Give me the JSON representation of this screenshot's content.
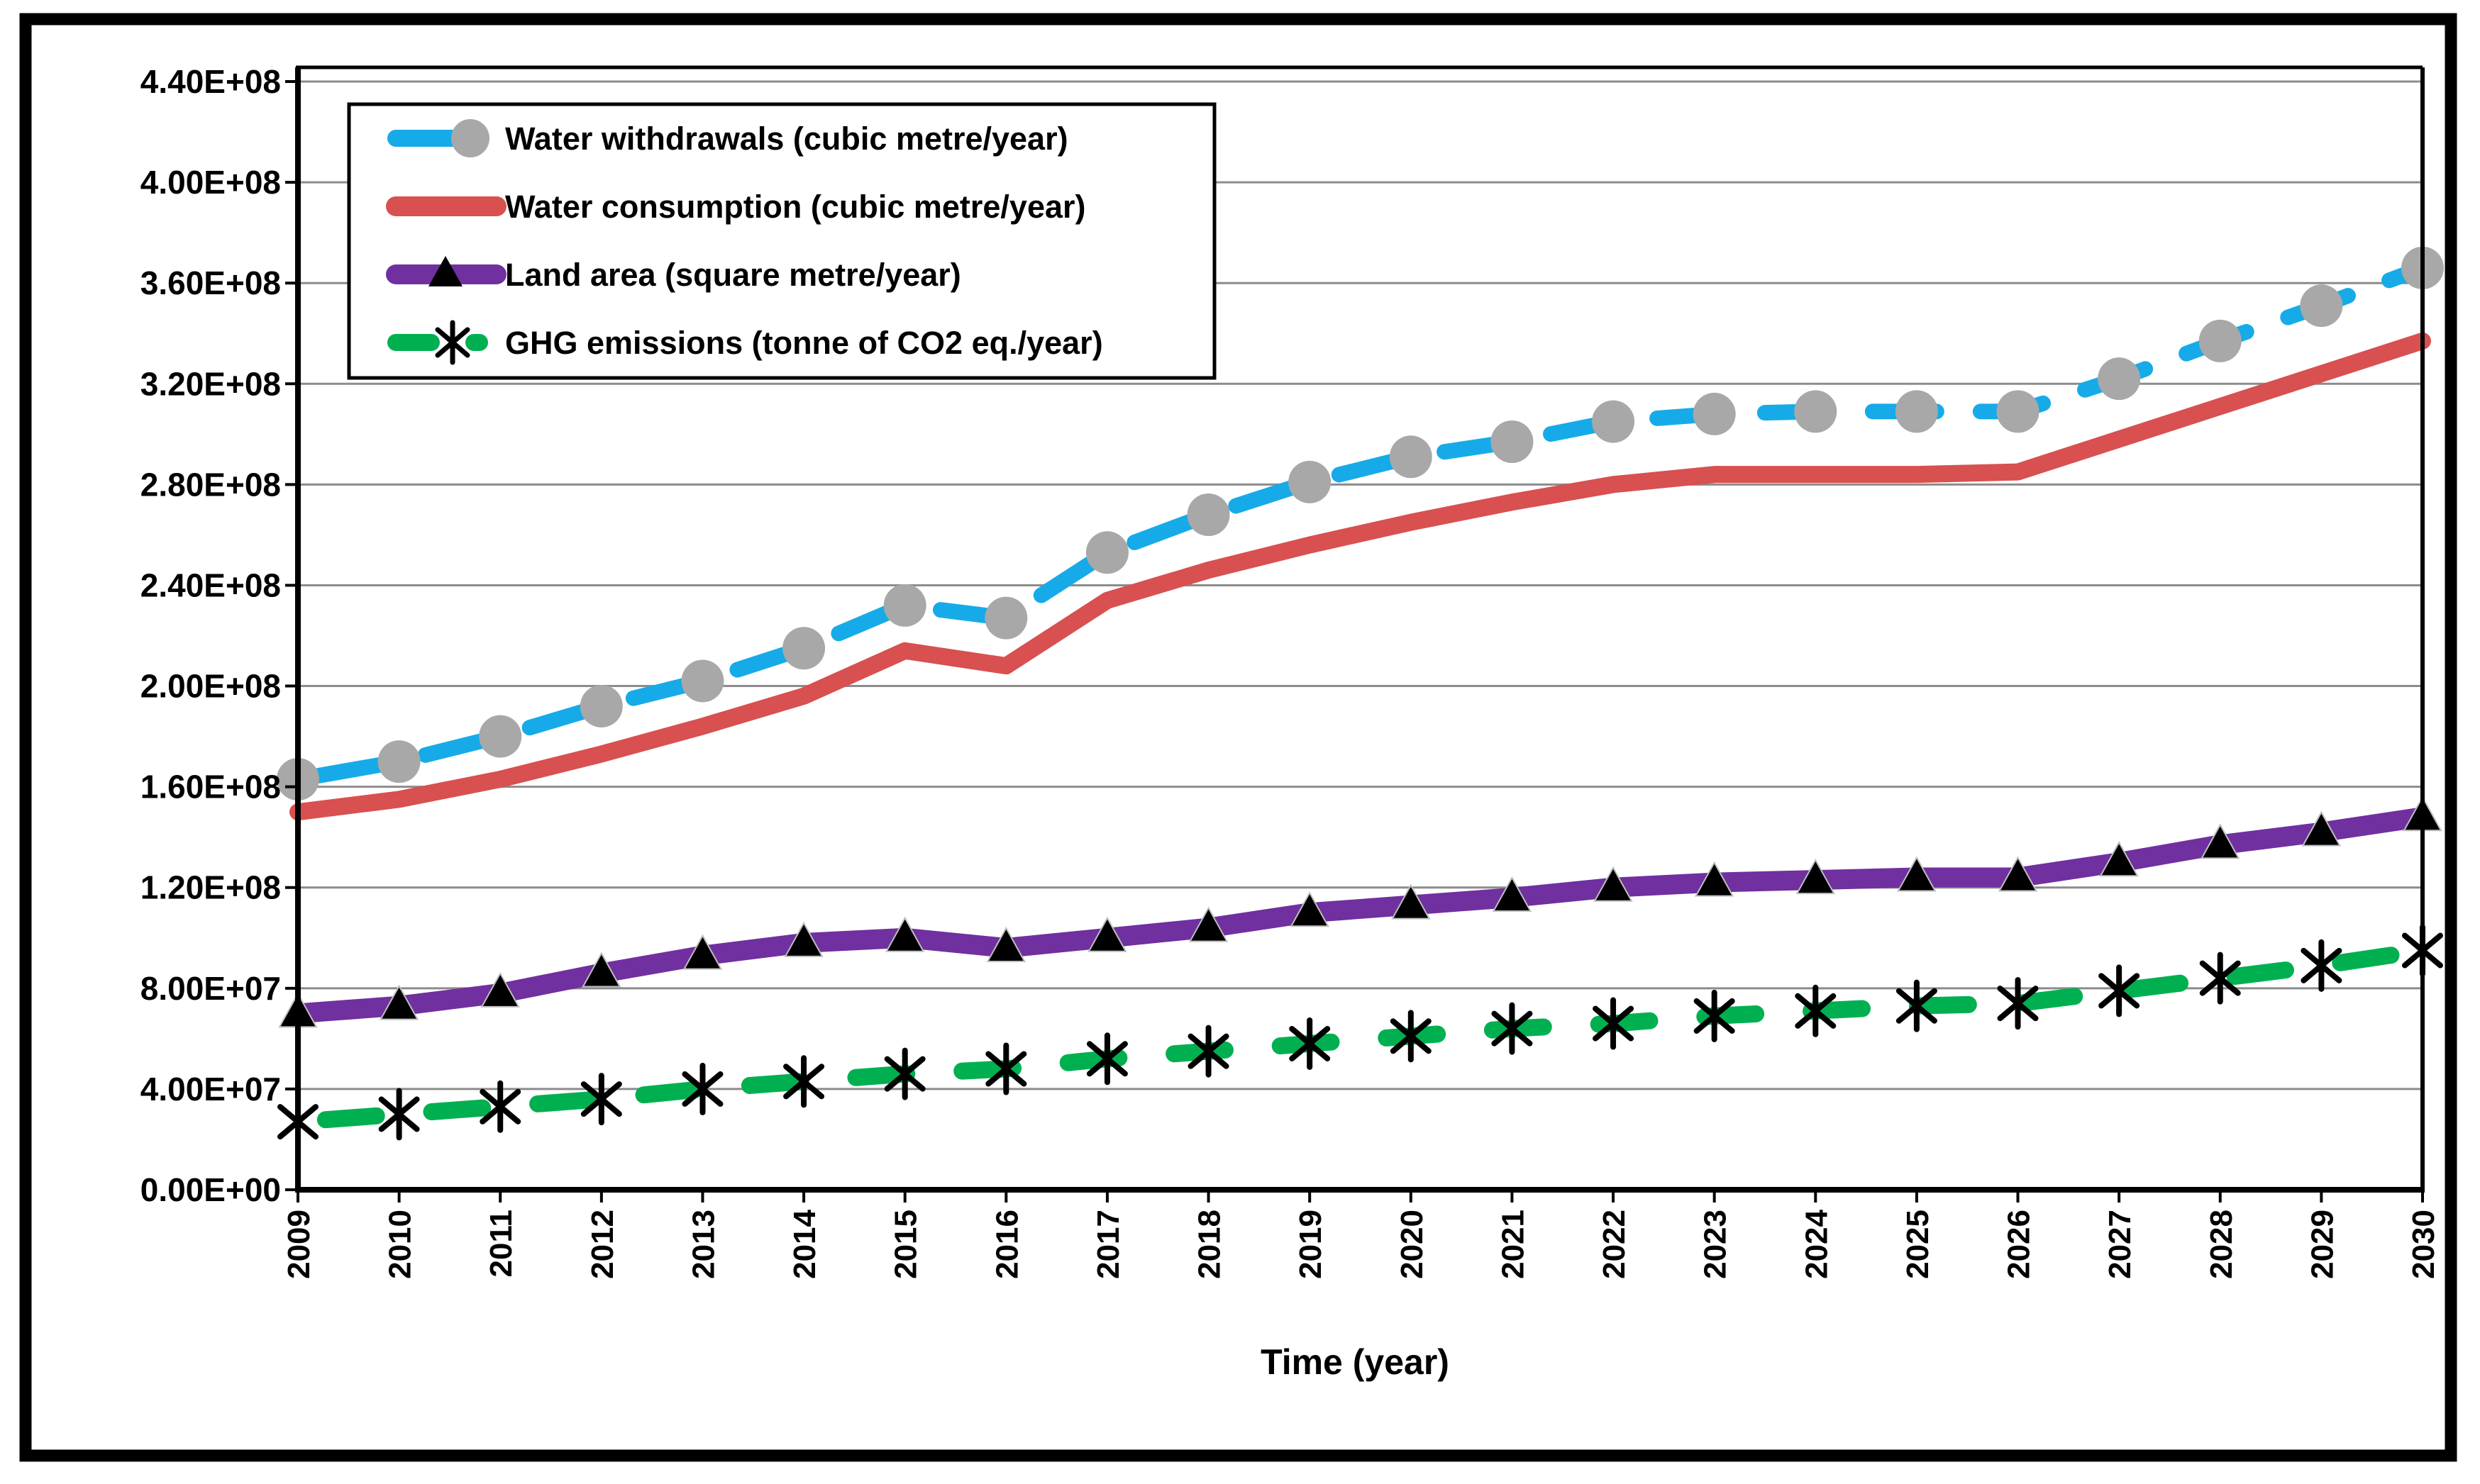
{
  "figure": {
    "background": "#ffffff",
    "frame_color": "#000000",
    "gridline_color": "#8c8c8c"
  },
  "chart_data": {
    "type": "line",
    "title": "",
    "xlabel": "Time (year)",
    "ylabel": "",
    "x": [
      2009,
      2010,
      2011,
      2012,
      2013,
      2014,
      2015,
      2016,
      2017,
      2018,
      2019,
      2020,
      2021,
      2022,
      2023,
      2024,
      2025,
      2026,
      2027,
      2028,
      2029,
      2030
    ],
    "x_tick_labels": [
      "2009",
      "2010",
      "2011",
      "2012",
      "2013",
      "2014",
      "2015",
      "2016",
      "2017",
      "2018",
      "2019",
      "2020",
      "2021",
      "2022",
      "2023",
      "2024",
      "2025",
      "2026",
      "2027",
      "2028",
      "2029",
      "2030"
    ],
    "y_tick_labels": [
      "0.00E+00",
      "4.00E+07",
      "8.00E+07",
      "1.20E+08",
      "1.60E+08",
      "2.00E+08",
      "2.40E+08",
      "2.80E+08",
      "3.20E+08",
      "3.60E+08",
      "4.00E+08",
      "4.40E+08"
    ],
    "ylim": [
      0,
      440000000
    ],
    "y_tick_step": 40000000,
    "grid": true,
    "legend_position": "top-left",
    "series": [
      {
        "name": "Water withdrawals (cubic metre/year)",
        "color": "#16ABE8",
        "marker": "circle",
        "marker_color": "#A8A8A8",
        "style": "dashed",
        "values": [
          163000000,
          170000000,
          180000000,
          192000000,
          202000000,
          215000000,
          232000000,
          227000000,
          253000000,
          268000000,
          281000000,
          291000000,
          297000000,
          305000000,
          308000000,
          309000000,
          309000000,
          309000000,
          322000000,
          337000000,
          351000000,
          366000000
        ]
      },
      {
        "name": "Water consumption (cubic metre/year)",
        "color": "#D85050",
        "marker": "none",
        "marker_color": "#D85050",
        "style": "solid",
        "values": [
          150000000,
          155000000,
          163000000,
          173000000,
          184000000,
          196000000,
          214000000,
          208000000,
          234000000,
          246000000,
          256000000,
          265000000,
          273000000,
          280000000,
          284000000,
          284000000,
          284000000,
          285000000,
          298000000,
          311000000,
          324000000,
          337000000
        ]
      },
      {
        "name": "Land area (square metre/year)",
        "color": "#7030A0",
        "marker": "triangle",
        "marker_color": "#000000",
        "style": "solid",
        "values": [
          70000000,
          73000000,
          78000000,
          86000000,
          93000000,
          98000000,
          100000000,
          96000000,
          100000000,
          104000000,
          110000000,
          113000000,
          116000000,
          120000000,
          122000000,
          123000000,
          124000000,
          124000000,
          130000000,
          137000000,
          142000000,
          148000000
        ]
      },
      {
        "name": "GHG emissions (tonne of CO2 eq./year)",
        "color": "#00B050",
        "marker": "asterisk",
        "marker_color": "#000000",
        "style": "dashed",
        "values": [
          27000000,
          30000000,
          33000000,
          36000000,
          40000000,
          43000000,
          46000000,
          48000000,
          52000000,
          55000000,
          58000000,
          61000000,
          64000000,
          66000000,
          69000000,
          71000000,
          73000000,
          74000000,
          79000000,
          84000000,
          89000000,
          95000000
        ]
      }
    ]
  }
}
